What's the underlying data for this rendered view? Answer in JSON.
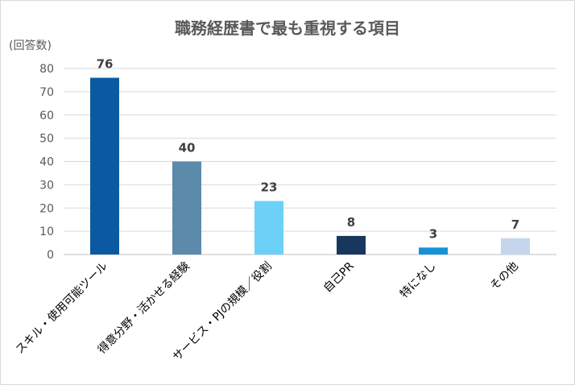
{
  "chart_data": {
    "type": "bar",
    "title": "職務経歴書で最も重視する項目",
    "ylabel": "(回答数)",
    "xlabel": "",
    "ylim": [
      0,
      80
    ],
    "yticks": [
      0,
      10,
      20,
      30,
      40,
      50,
      60,
      70,
      80
    ],
    "grid": true,
    "legend": "none",
    "categories": [
      "スキル・使用可能ツール",
      "得意分野・活かせる経験",
      "サービス・PJの規模／役割",
      "自己PR",
      "特になし",
      "その他"
    ],
    "values": [
      76,
      40,
      23,
      8,
      3,
      7
    ],
    "colors": [
      "#0b5aa1",
      "#5b8aab",
      "#6dd0f7",
      "#17375e",
      "#1592d6",
      "#c5d6ec"
    ]
  }
}
